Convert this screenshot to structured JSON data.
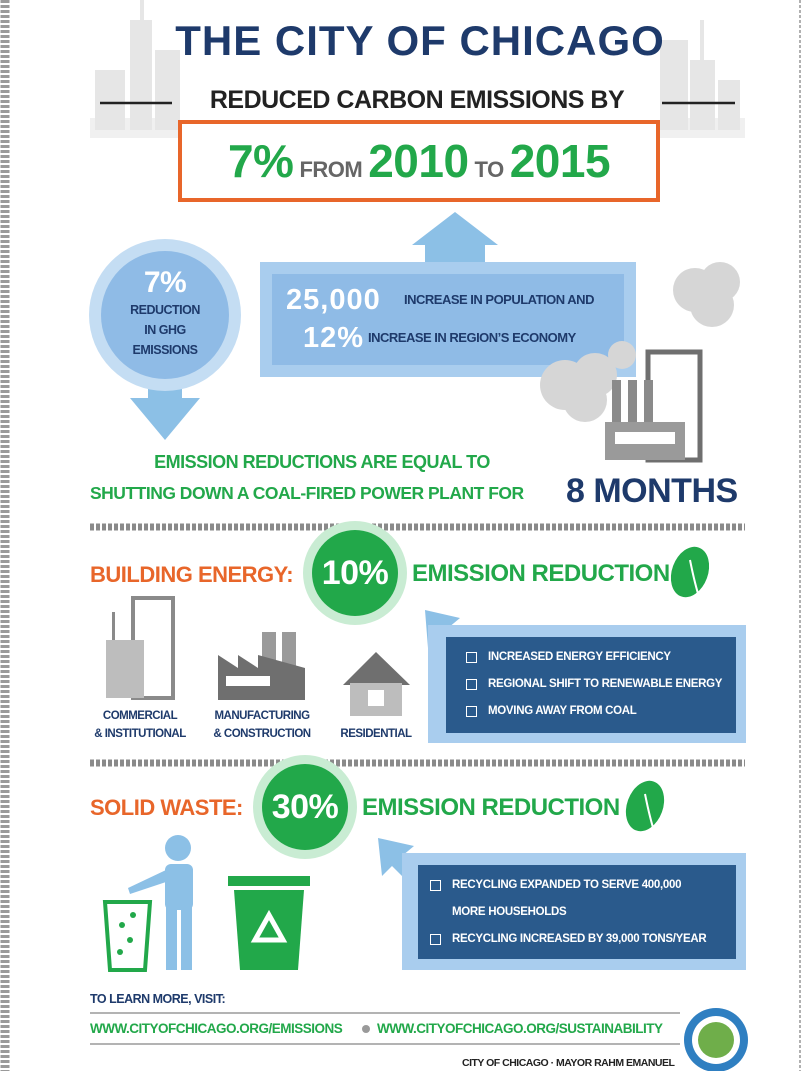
{
  "header": {
    "title": "THE CITY OF CHICAGO",
    "subtitle": "REDUCED CARBON EMISSIONS BY",
    "headline": {
      "percent": "7%",
      "from": "FROM",
      "start_year": "2010",
      "to": "TO",
      "end_year": "2015"
    }
  },
  "summary": {
    "circle": {
      "percent": "7%",
      "label": [
        "REDUCTION",
        "IN GHG",
        "EMISSIONS"
      ]
    },
    "box": [
      {
        "figure": "25,000",
        "text": "INCREASE IN POPULATION AND"
      },
      {
        "figure": "12%",
        "text": "INCREASE IN REGION’S ECONOMY"
      }
    ]
  },
  "equivalence": {
    "line1": "EMISSION REDUCTIONS ARE EQUAL TO",
    "line2": "SHUTTING DOWN A COAL-FIRED POWER PLANT FOR",
    "highlight": "8 MONTHS"
  },
  "sections": [
    {
      "label": "BUILDING ENERGY:",
      "percent": "10%",
      "suffix": "EMISSION REDUCTION",
      "sectors": [
        [
          "COMMERCIAL",
          "& INSTITUTIONAL"
        ],
        [
          "MANUFACTURING",
          "& CONSTRUCTION"
        ],
        [
          "RESIDENTIAL"
        ]
      ],
      "bullets": [
        "INCREASED ENERGY EFFICIENCY",
        "REGIONAL SHIFT TO RENEWABLE ENERGY",
        "MOVING AWAY FROM COAL"
      ]
    },
    {
      "label": "SOLID WASTE:",
      "percent": "30%",
      "suffix": "EMISSION REDUCTION",
      "bullets": [
        "RECYCLING EXPANDED TO SERVE 400,000 MORE HOUSEHOLDS",
        "RECYCLING INCREASED BY 39,000 TONS/YEAR"
      ]
    }
  ],
  "footer": {
    "prompt": "TO LEARN MORE, VISIT:",
    "links": [
      "WWW.CITYOFCHICAGO.ORG/EMISSIONS",
      "WWW.CITYOFCHICAGO.ORG/SUSTAINABILITY"
    ],
    "credit": "CITY OF CHICAGO · MAYOR RAHM EMANUEL"
  }
}
